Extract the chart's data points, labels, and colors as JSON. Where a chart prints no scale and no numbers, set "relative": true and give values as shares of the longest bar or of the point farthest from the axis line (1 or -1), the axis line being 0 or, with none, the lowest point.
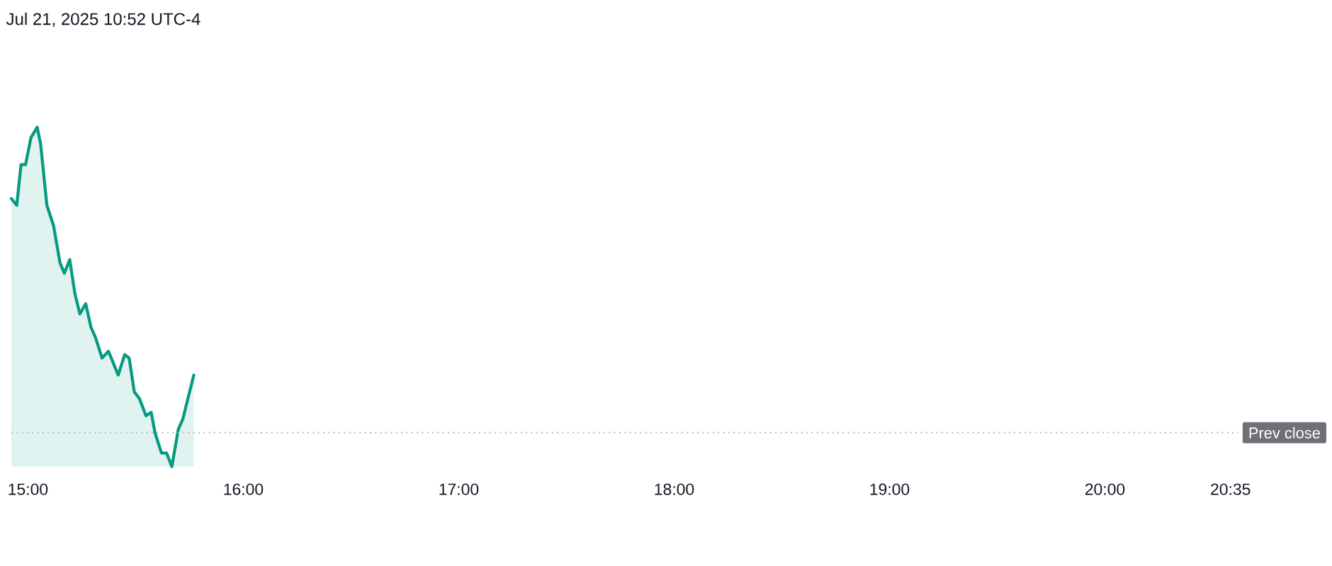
{
  "chart_data": {
    "type": "area",
    "relative": true,
    "annotations": [
      "Jul 21, 2025 10:52 UTC-4"
    ],
    "x": [
      14.923,
      14.948,
      14.968,
      14.989,
      15.014,
      15.043,
      15.059,
      15.088,
      15.119,
      15.149,
      15.169,
      15.194,
      15.218,
      15.241,
      15.268,
      15.293,
      15.314,
      15.344,
      15.374,
      15.419,
      15.449,
      15.47,
      15.494,
      15.518,
      15.548,
      15.572,
      15.59,
      15.62,
      15.644,
      15.668,
      15.698,
      15.719,
      15.77
    ],
    "values": [
      0.79,
      0.77,
      0.89,
      0.89,
      0.97,
      1,
      0.95,
      0.77,
      0.71,
      0.6,
      0.57,
      0.61,
      0.51,
      0.45,
      0.48,
      0.41,
      0.38,
      0.32,
      0.34,
      0.27,
      0.33,
      0.32,
      0.22,
      0.2,
      0.15,
      0.16,
      0.1,
      0.04,
      0.04,
      0,
      0.11,
      0.14,
      0.27
    ],
    "color": "#089981",
    "xlim": [
      14.923,
      20.62
    ],
    "xticks": [
      {
        "value": 15,
        "label": "15:00"
      },
      {
        "value": 16,
        "label": "16:00"
      },
      {
        "value": 17,
        "label": "17:00"
      },
      {
        "value": 18,
        "label": "18:00"
      },
      {
        "value": 19,
        "label": "19:00"
      },
      {
        "value": 20,
        "label": "20:00"
      },
      {
        "value": 20.583,
        "label": "20:35"
      }
    ],
    "tick_labels": "x",
    "ref_lines": [
      {
        "axis": "y",
        "value": 0.1,
        "label": "Prev close",
        "color": "#b2b5be",
        "line_style": "dotted"
      }
    ]
  }
}
